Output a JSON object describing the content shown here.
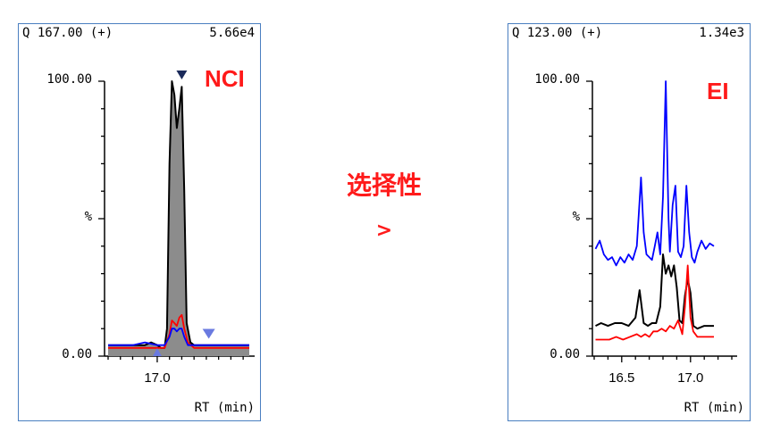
{
  "comparison": {
    "label": "选择性",
    "symbol": ">"
  },
  "colors": {
    "black": "#000000",
    "red": "#ff0000",
    "blue": "#0000ff",
    "fill_gray": "#8c8c8c",
    "marker_dark": "#1a2a5a",
    "marker_light": "#6a7ae0",
    "tag_red": "#ff1a1a",
    "frame_blue": "#4a7fc0"
  },
  "chart_data": [
    {
      "type": "line",
      "panel": "left",
      "header_left": "Q 167.00 (+)",
      "header_right": "5.66e4",
      "tag": "NCI",
      "ylabel": "%",
      "xlabel": "RT (min)",
      "ytick_labels": [
        "100.00",
        "0.00"
      ],
      "ylim": [
        0,
        100
      ],
      "xlim": [
        16.6,
        17.75
      ],
      "x_ticks": [
        17.0
      ],
      "x_tick_labels": [
        "17.0"
      ],
      "filled_series": "black",
      "series": [
        {
          "color": "black",
          "x": [
            16.6,
            16.7,
            16.8,
            16.9,
            16.95,
            17.0,
            17.03,
            17.06,
            17.08,
            17.1,
            17.12,
            17.14,
            17.16,
            17.18,
            17.2,
            17.22,
            17.24,
            17.27,
            17.3,
            17.35,
            17.4,
            17.5,
            17.6,
            17.7,
            17.75
          ],
          "y": [
            4,
            4,
            4,
            4,
            5,
            4,
            3,
            3,
            10,
            70,
            100,
            95,
            83,
            90,
            98,
            60,
            12,
            5,
            4,
            4,
            4,
            4,
            4,
            4,
            4
          ]
        },
        {
          "color": "red",
          "x": [
            16.6,
            16.8,
            17.0,
            17.06,
            17.1,
            17.12,
            17.14,
            17.16,
            17.18,
            17.2,
            17.22,
            17.25,
            17.3,
            17.4,
            17.5,
            17.6,
            17.75
          ],
          "y": [
            3,
            3,
            3,
            3,
            8,
            13,
            12,
            11,
            14,
            15,
            10,
            5,
            3,
            3,
            3,
            3,
            3
          ]
        },
        {
          "color": "blue",
          "x": [
            16.6,
            16.8,
            16.9,
            17.0,
            17.06,
            17.1,
            17.12,
            17.14,
            17.16,
            17.18,
            17.2,
            17.22,
            17.25,
            17.3,
            17.4,
            17.5,
            17.6,
            17.75
          ],
          "y": [
            4,
            4,
            5,
            4,
            4,
            7,
            10,
            10,
            9,
            10,
            10,
            7,
            4,
            4,
            4,
            4,
            4,
            4
          ]
        }
      ],
      "markers": [
        {
          "type": "apex",
          "x": 17.2,
          "y": 100,
          "color": "dark"
        },
        {
          "type": "start",
          "x": 17.0,
          "y": 0,
          "color": "light"
        },
        {
          "type": "end",
          "x": 17.42,
          "y": 6,
          "color": "light"
        }
      ]
    },
    {
      "type": "line",
      "panel": "right",
      "header_left": "Q 123.00 (+)",
      "header_right": "1.34e3",
      "tag": "EI",
      "ylabel": "%",
      "xlabel": "RT (min)",
      "ytick_labels": [
        "100.00",
        "0.00"
      ],
      "ylim": [
        0,
        100
      ],
      "xlim": [
        16.3,
        17.3
      ],
      "x_ticks": [
        16.5,
        17.0
      ],
      "x_tick_labels": [
        "16.5",
        "17.0"
      ],
      "series": [
        {
          "color": "blue",
          "x": [
            16.31,
            16.34,
            16.37,
            16.4,
            16.43,
            16.46,
            16.49,
            16.52,
            16.55,
            16.58,
            16.61,
            16.64,
            16.66,
            16.68,
            16.7,
            16.72,
            16.74,
            16.76,
            16.78,
            16.8,
            16.82,
            16.84,
            16.85,
            16.87,
            16.89,
            16.91,
            16.93,
            16.95,
            16.97,
            16.99,
            17.01,
            17.03,
            17.05,
            17.08,
            17.11,
            17.14,
            17.17
          ],
          "y": [
            39,
            42,
            37,
            35,
            36,
            33,
            36,
            34,
            37,
            35,
            40,
            65,
            45,
            37,
            36,
            35,
            40,
            45,
            37,
            58,
            100,
            50,
            38,
            55,
            62,
            38,
            36,
            40,
            62,
            45,
            36,
            34,
            38,
            42,
            39,
            41,
            40
          ]
        },
        {
          "color": "black",
          "x": [
            16.31,
            16.35,
            16.4,
            16.45,
            16.5,
            16.55,
            16.6,
            16.63,
            16.66,
            16.69,
            16.72,
            16.75,
            16.78,
            16.8,
            16.82,
            16.84,
            16.86,
            16.88,
            16.9,
            16.92,
            16.94,
            16.96,
            16.98,
            17.0,
            17.02,
            17.05,
            17.1,
            17.15,
            17.17
          ],
          "y": [
            11,
            12,
            11,
            12,
            12,
            11,
            14,
            24,
            12,
            11,
            12,
            12,
            18,
            37,
            30,
            33,
            29,
            33,
            25,
            13,
            12,
            22,
            28,
            23,
            11,
            10,
            11,
            11,
            11
          ]
        },
        {
          "color": "red",
          "x": [
            16.31,
            16.36,
            16.41,
            16.46,
            16.51,
            16.56,
            16.61,
            16.64,
            16.67,
            16.7,
            16.73,
            16.76,
            16.79,
            16.82,
            16.85,
            16.88,
            16.91,
            16.94,
            16.96,
            16.98,
            17.0,
            17.02,
            17.05,
            17.1,
            17.15,
            17.17
          ],
          "y": [
            6,
            6,
            6,
            7,
            6,
            7,
            8,
            7,
            8,
            7,
            9,
            9,
            10,
            9,
            11,
            10,
            13,
            8,
            18,
            33,
            14,
            9,
            7,
            7,
            7,
            7
          ]
        }
      ],
      "markers": []
    }
  ]
}
